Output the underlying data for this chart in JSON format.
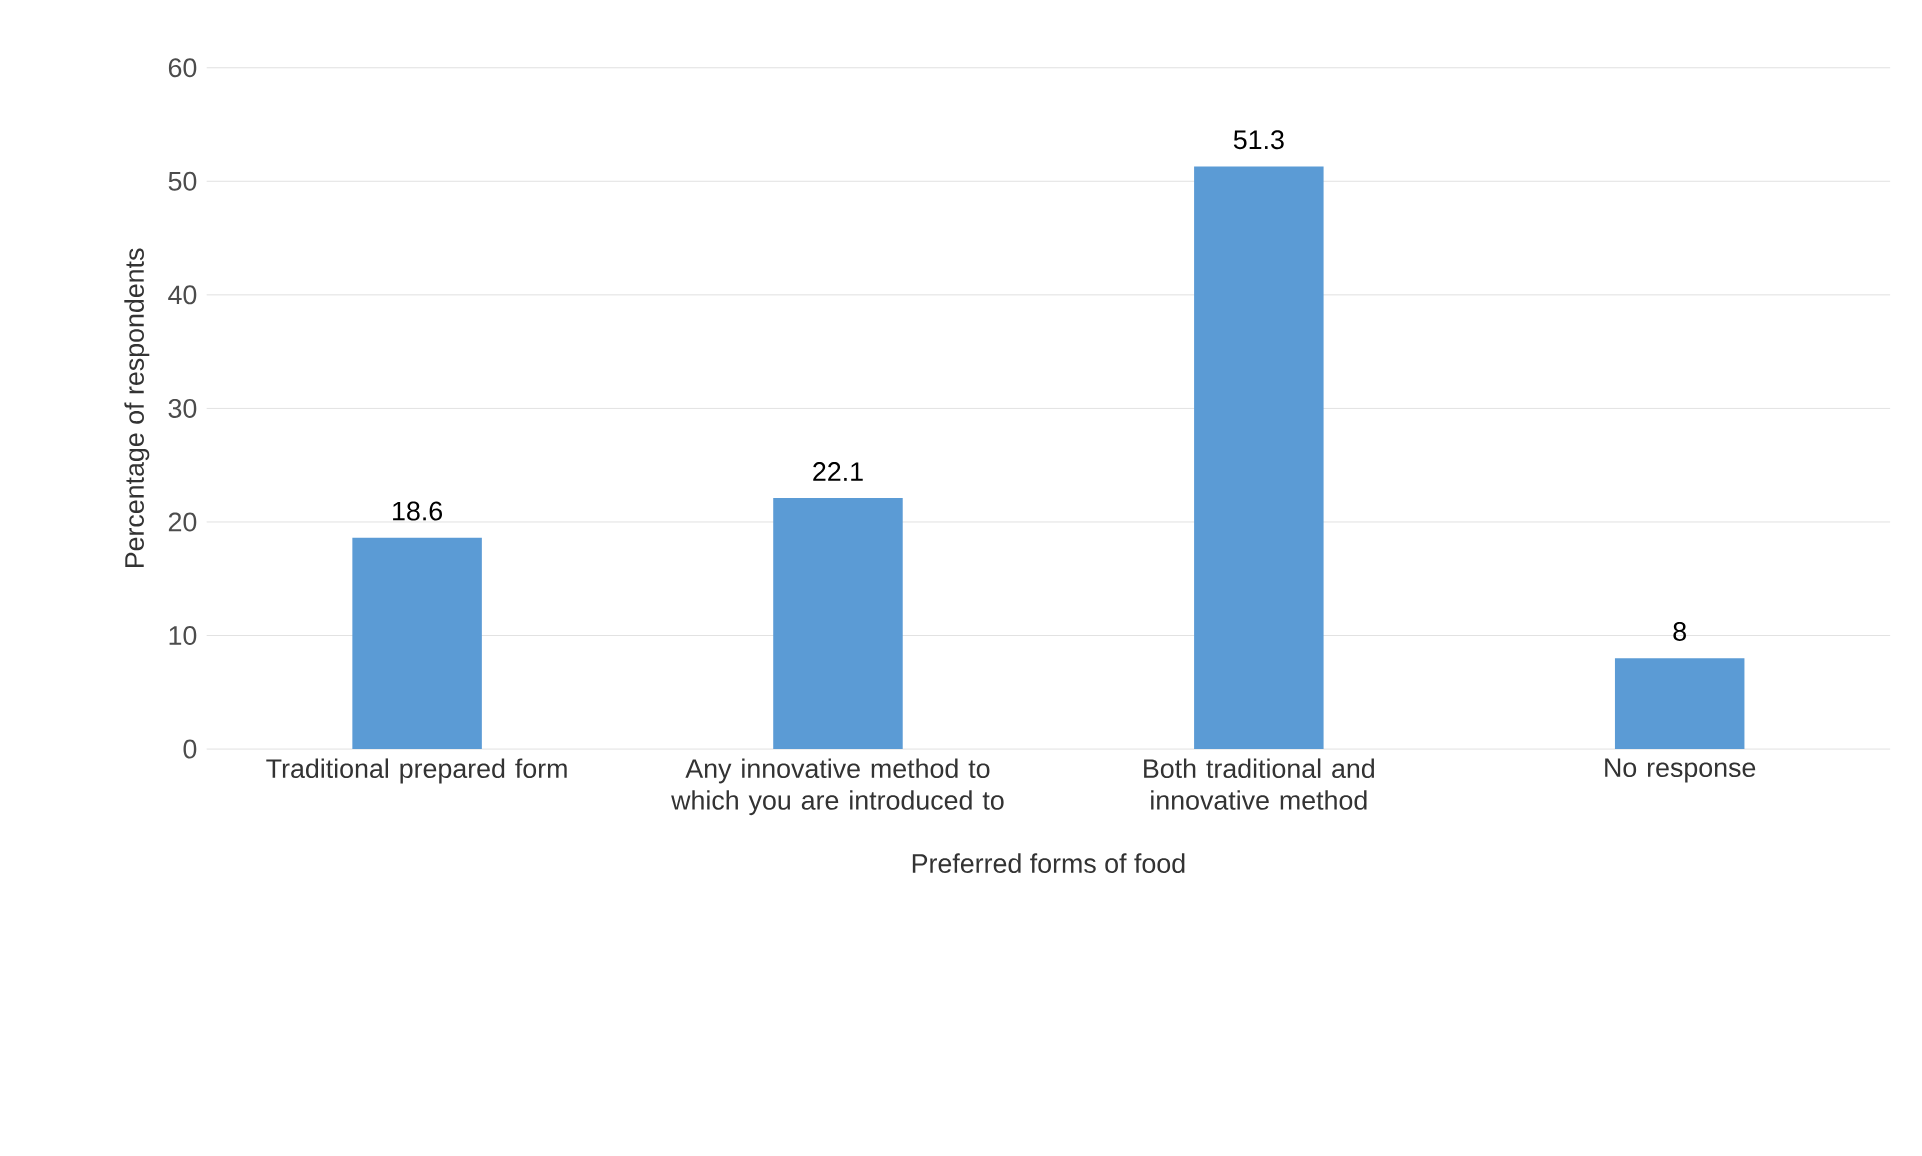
{
  "chart_data": {
    "type": "bar",
    "xlabel": "Preferred  forms of food",
    "ylabel": "Percentage of respondents",
    "categories": [
      "Traditional prepared form",
      "Any innovative method to which you are introduced to",
      "Both traditional and innovative method",
      "No response"
    ],
    "values": [
      18.6,
      22.1,
      51.3,
      8
    ],
    "color": "#5b9bd5",
    "ylim": [
      0,
      60
    ],
    "yticks": [
      0,
      10,
      20,
      30,
      40,
      50,
      60
    ],
    "grid": "y",
    "data_labels": true
  }
}
